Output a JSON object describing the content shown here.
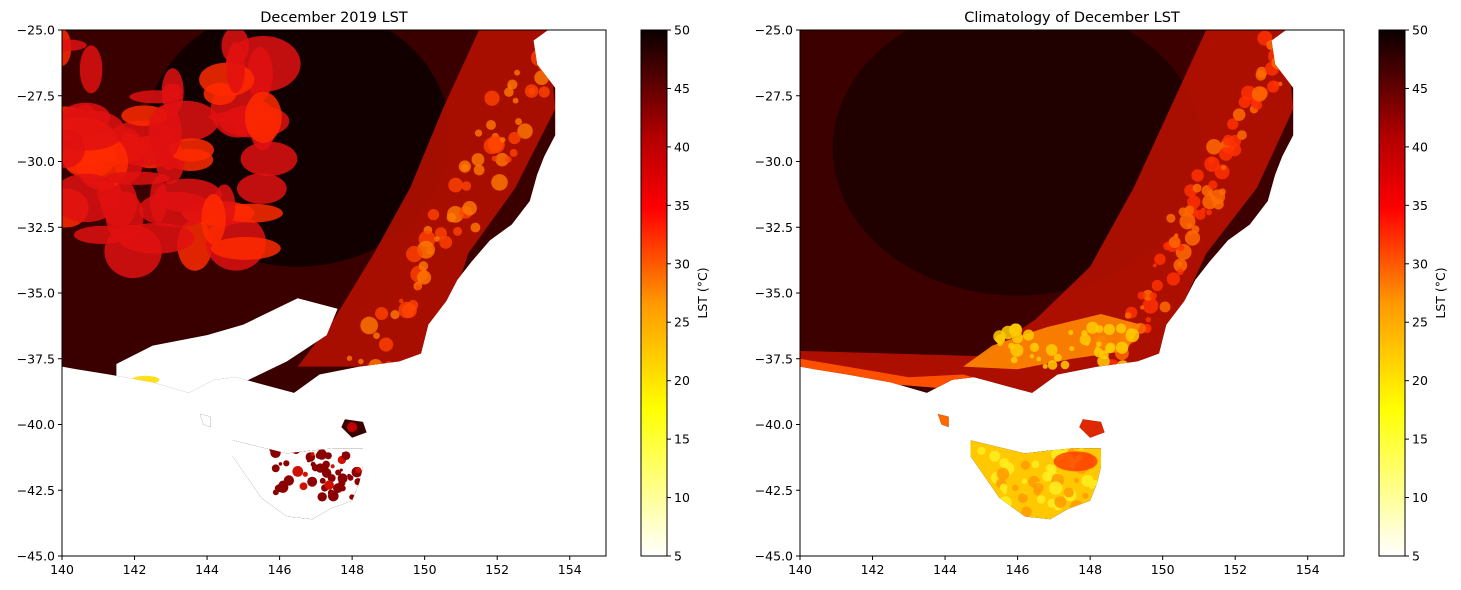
{
  "chart_data": [
    {
      "type": "heatmap",
      "title": "December 2019 LST",
      "xlim": [
        140,
        155
      ],
      "ylim": [
        -45.0,
        -25.0
      ],
      "x_ticks": [
        "140",
        "142",
        "144",
        "146",
        "148",
        "150",
        "152",
        "154"
      ],
      "y_ticks": [
        "−25.0",
        "−27.5",
        "−30.0",
        "−32.5",
        "−35.0",
        "−37.5",
        "−40.0",
        "−42.5",
        "−45.0"
      ],
      "colorbar": {
        "label": "LST (°C)",
        "range": [
          5,
          50
        ],
        "ticks": [
          "5",
          "10",
          "15",
          "20",
          "25",
          "30",
          "35",
          "40",
          "45",
          "50"
        ],
        "colormap": "hot_r"
      },
      "description_variant": "dec2019"
    },
    {
      "type": "heatmap",
      "title": "Climatology of December LST",
      "xlim": [
        140,
        155
      ],
      "ylim": [
        -45.0,
        -25.0
      ],
      "x_ticks": [
        "140",
        "142",
        "144",
        "146",
        "148",
        "150",
        "152",
        "154"
      ],
      "y_ticks": [
        "−25.0",
        "−27.5",
        "−30.0",
        "−32.5",
        "−35.0",
        "−37.5",
        "−40.0",
        "−42.5",
        "−45.0"
      ],
      "colorbar": {
        "label": "LST (°C)",
        "range": [
          5,
          50
        ],
        "ticks": [
          "5",
          "10",
          "15",
          "20",
          "25",
          "30",
          "35",
          "40",
          "45",
          "50"
        ],
        "colormap": "hot_r"
      },
      "description_variant": "climatology"
    }
  ],
  "colors": {
    "hot_r_stops": [
      "#ffffff",
      "#ffff00",
      "#ff8c00",
      "#ff0000",
      "#b00000",
      "#5a0000",
      "#0b0000"
    ]
  }
}
